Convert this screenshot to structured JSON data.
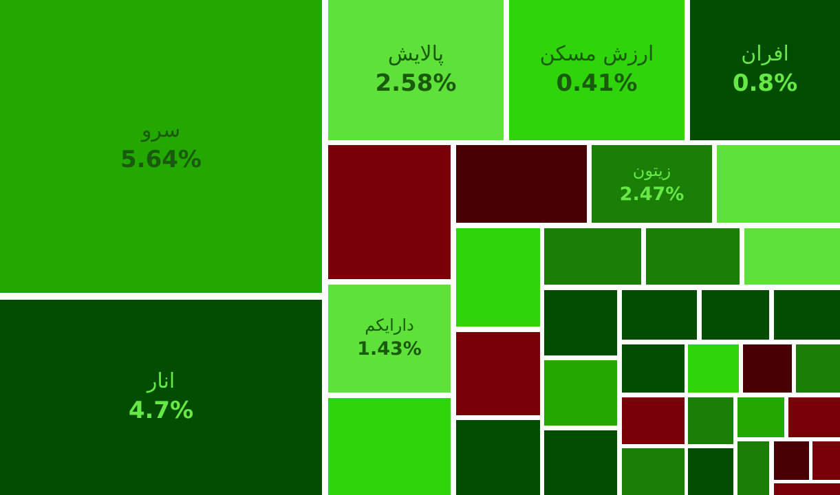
{
  "tiles": [
    {
      "name": "سرو",
      "change": "5.64%"
    },
    {
      "name": "انار",
      "change": "4.7%"
    },
    {
      "name": "پالایش",
      "change": "2.58%"
    },
    {
      "name": "ارزش مسکن",
      "change": "0.41%"
    },
    {
      "name": "افران",
      "change": "0.8%"
    },
    {
      "name": "زیتون",
      "change": "2.47%"
    },
    {
      "name": "دارایکم",
      "change": "1.43%"
    }
  ]
}
